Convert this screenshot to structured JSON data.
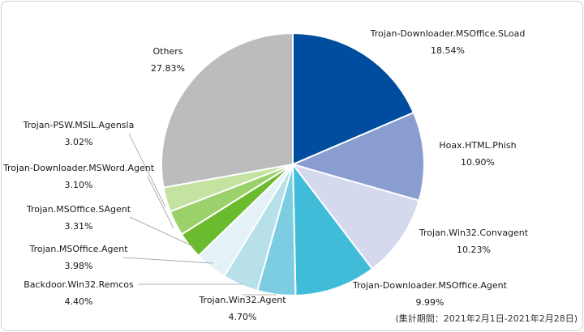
{
  "chart_data": {
    "type": "pie",
    "title": "",
    "slices": [
      {
        "label": "Trojan-Downloader.MSOffice.SLoad",
        "value": 18.54,
        "display": "18.54%",
        "color": "#004c9e"
      },
      {
        "label": "Hoax.HTML.Phish",
        "value": 10.9,
        "display": "10.90%",
        "color": "#8a9dd0"
      },
      {
        "label": "Trojan.Win32.Convagent",
        "value": 10.23,
        "display": "10.23%",
        "color": "#d5d9ee"
      },
      {
        "label": "Trojan-Downloader.MSOffice.Agent",
        "value": 9.99,
        "display": "9.99%",
        "color": "#40bcd8"
      },
      {
        "label": "Trojan.Win32.Agent",
        "value": 4.7,
        "display": "4.70%",
        "color": "#7ccde2"
      },
      {
        "label": "Backdoor.Win32.Remcos",
        "value": 4.4,
        "display": "4.40%",
        "color": "#b7e0ea"
      },
      {
        "label": "Trojan.MSOffice.Agent",
        "value": 3.98,
        "display": "3.98%",
        "color": "#e4f1f7"
      },
      {
        "label": "Trojan.MSOffice.SAgent",
        "value": 3.31,
        "display": "3.31%",
        "color": "#6bbb2f"
      },
      {
        "label": "Trojan-Downloader.MSWord.Agent",
        "value": 3.1,
        "display": "3.10%",
        "color": "#9bd16a"
      },
      {
        "label": "Trojan-PSW.MSIL.Agensla",
        "value": 3.02,
        "display": "3.02%",
        "color": "#c4e3a1"
      },
      {
        "label": "Others",
        "value": 27.83,
        "display": "27.83%",
        "color": "#bcbcbc"
      }
    ],
    "legend": "none",
    "labels": "outside-with-leader-lines"
  },
  "footnote": "(集計期間：2021年2月1日-2021年2月28日)"
}
